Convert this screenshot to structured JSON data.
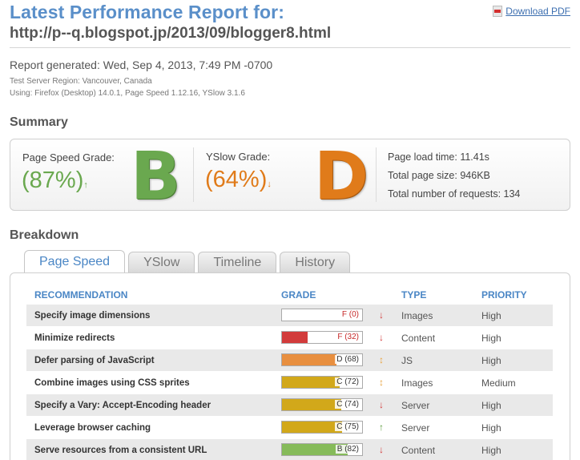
{
  "header": {
    "title": "Latest Performance Report for:",
    "url": "http://p--q.blogspot.jp/2013/09/blogger8.html",
    "download_label": "Download PDF"
  },
  "meta": {
    "generated": "Report generated: Wed, Sep 4, 2013, 7:49 PM -0700",
    "region": "Test Server Region: Vancouver, Canada",
    "using": "Using: Firefox (Desktop) 14.0.1, Page Speed 1.12.16, YSlow 3.1.6"
  },
  "summary": {
    "heading": "Summary",
    "pagespeed": {
      "label": "Page Speed Grade:",
      "percent": "(87%)",
      "arrow": "↑",
      "letter": "B",
      "color": "#6aa84f"
    },
    "yslow": {
      "label": "YSlow Grade:",
      "percent": "(64%)",
      "arrow": "↓",
      "letter": "D",
      "color": "#e07b1a"
    },
    "load_time": "Page load time: 11.41s",
    "page_size": "Total page size: 946KB",
    "requests": "Total number of requests: 134"
  },
  "breakdown": {
    "heading": "Breakdown",
    "tabs": [
      "Page Speed",
      "YSlow",
      "Timeline",
      "History"
    ],
    "columns": [
      "RECOMMENDATION",
      "GRADE",
      "TYPE",
      "PRIORITY"
    ],
    "rows": [
      {
        "rec": "Specify image dimensions",
        "grade": "F (0)",
        "score": 0,
        "color": "#d23b3b",
        "dir": "↓",
        "dir_color": "#d23b3b",
        "type": "Images",
        "priority": "High"
      },
      {
        "rec": "Minimize redirects",
        "grade": "F (32)",
        "score": 32,
        "color": "#d23b3b",
        "dir": "↓",
        "dir_color": "#d23b3b",
        "type": "Content",
        "priority": "High"
      },
      {
        "rec": "Defer parsing of JavaScript",
        "grade": "D (68)",
        "score": 68,
        "color": "#e88f3f",
        "dir": "↕",
        "dir_color": "#e8a33f",
        "type": "JS",
        "priority": "High"
      },
      {
        "rec": "Combine images using CSS sprites",
        "grade": "C (72)",
        "score": 72,
        "color": "#d2a81a",
        "dir": "↕",
        "dir_color": "#e8a33f",
        "type": "Images",
        "priority": "Medium"
      },
      {
        "rec": "Specify a Vary: Accept-Encoding header",
        "grade": "C (74)",
        "score": 74,
        "color": "#d2a81a",
        "dir": "↓",
        "dir_color": "#d23b3b",
        "type": "Server",
        "priority": "High"
      },
      {
        "rec": "Leverage browser caching",
        "grade": "C (75)",
        "score": 75,
        "color": "#d2a81a",
        "dir": "↑",
        "dir_color": "#5a9a3a",
        "type": "Server",
        "priority": "High"
      },
      {
        "rec": "Serve resources from a consistent URL",
        "grade": "B (82)",
        "score": 82,
        "color": "#86bb5a",
        "dir": "↓",
        "dir_color": "#d23b3b",
        "type": "Content",
        "priority": "High"
      }
    ]
  }
}
